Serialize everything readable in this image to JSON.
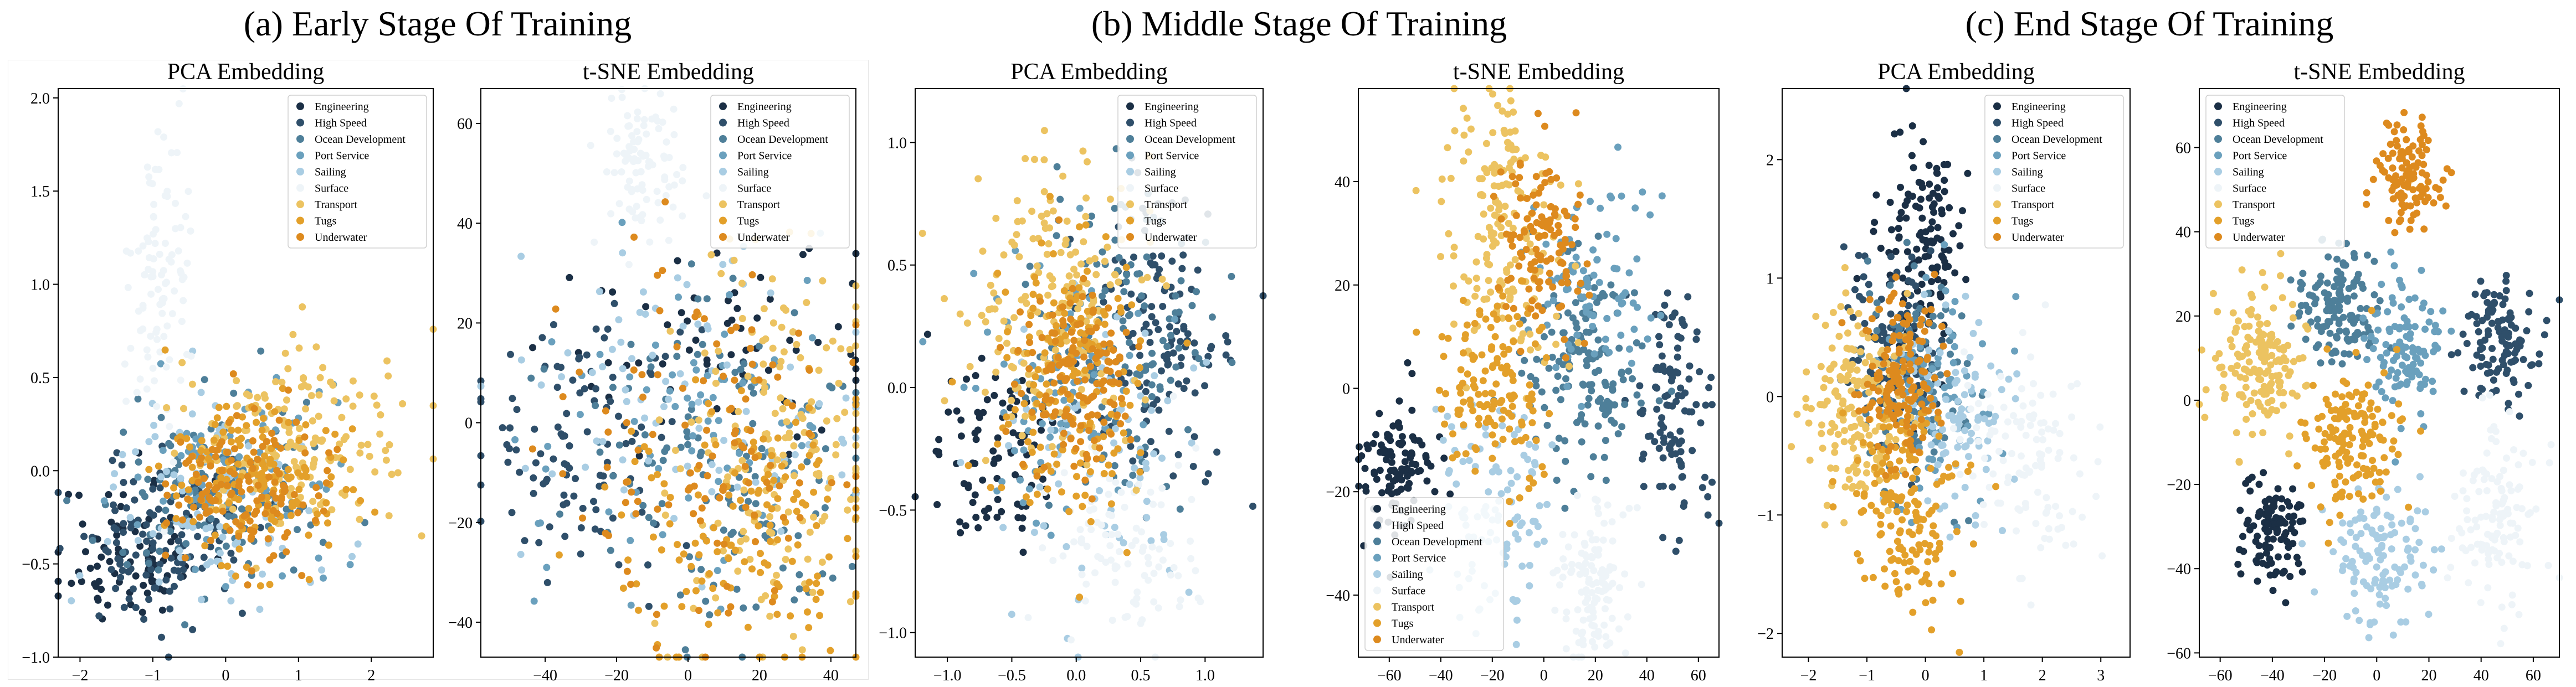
{
  "figure": {
    "stage_titles": [
      "(a) Early Stage Of Training",
      "(b) Middle Stage Of Training",
      "(c) End Stage Of Training"
    ],
    "legend_entries": [
      "Engineering",
      "High Speed",
      "Ocean Development",
      "Port Service",
      "Sailing",
      "Surface",
      "Transport",
      "Tugs",
      "Underwater"
    ],
    "colors": {
      "Engineering": "#1b2f45",
      "High Speed": "#2f4f6a",
      "Ocean Development": "#4e7f99",
      "Port Service": "#6aa0bd",
      "Sailing": "#a9cde3",
      "Surface": "#eef4f8",
      "Transport": "#ecc361",
      "Tugs": "#e3a02a",
      "Underwater": "#dd8a1e"
    }
  },
  "chart_data": [
    {
      "type": "scatter",
      "stage": "(a) Early Stage Of Training",
      "title": "PCA Embedding",
      "xlim": [
        -2.3,
        2.85
      ],
      "ylim": [
        -1.0,
        2.05
      ],
      "xticks": [
        -2,
        -1,
        0,
        1,
        2
      ],
      "yticks": [
        -1.0,
        -0.5,
        0.0,
        0.5,
        1.0,
        1.5,
        2.0
      ],
      "ytick_labels": [
        "−1.0",
        "−0.5",
        "0.0",
        "0.5",
        "1.0",
        "1.5",
        "2.0"
      ],
      "legend_position": "top-right",
      "clusters": [
        {
          "label": "Engineering",
          "cx": -1.3,
          "cy": -0.45,
          "sx": 0.5,
          "sy": 0.2,
          "n": 80
        },
        {
          "label": "High Speed",
          "cx": -0.9,
          "cy": -0.35,
          "sx": 0.6,
          "sy": 0.22,
          "n": 120
        },
        {
          "label": "Ocean Development",
          "cx": -0.2,
          "cy": -0.15,
          "sx": 0.7,
          "sy": 0.25,
          "n": 130
        },
        {
          "label": "Port Service",
          "cx": 0.2,
          "cy": -0.05,
          "sx": 0.7,
          "sy": 0.25,
          "n": 80
        },
        {
          "label": "Sailing",
          "cx": -0.3,
          "cy": -0.2,
          "sx": 0.7,
          "sy": 0.28,
          "n": 90
        },
        {
          "label": "Surface",
          "cx": -0.9,
          "cy": 0.95,
          "sx": 0.22,
          "sy": 0.45,
          "n": 100
        },
        {
          "label": "Transport",
          "cx": 0.9,
          "cy": 0.15,
          "sx": 0.8,
          "sy": 0.25,
          "n": 170
        },
        {
          "label": "Tugs",
          "cx": 0.4,
          "cy": -0.05,
          "sx": 0.6,
          "sy": 0.22,
          "n": 170
        },
        {
          "label": "Underwater",
          "cx": 0.3,
          "cy": -0.1,
          "sx": 0.55,
          "sy": 0.2,
          "n": 130
        }
      ]
    },
    {
      "type": "scatter",
      "stage": "(a) Early Stage Of Training",
      "title": "t-SNE Embedding",
      "xlim": [
        -58,
        47
      ],
      "ylim": [
        -47,
        67
      ],
      "xticks": [
        -40,
        -20,
        0,
        20,
        40
      ],
      "yticks": [
        -40,
        -20,
        0,
        20,
        40,
        60
      ],
      "xtick_labels": [
        "−40",
        "−20",
        "0",
        "20",
        "40"
      ],
      "ytick_labels": [
        "−40",
        "−20",
        "0",
        "20",
        "40",
        "60"
      ],
      "legend_position": "top-right",
      "clusters": [
        {
          "label": "Engineering",
          "cx": 10,
          "cy": 15,
          "sx": 25,
          "sy": 10,
          "n": 60
        },
        {
          "label": "High Speed",
          "cx": -30,
          "cy": -5,
          "sx": 18,
          "sy": 12,
          "n": 110
        },
        {
          "label": "Ocean Development",
          "cx": 10,
          "cy": -10,
          "sx": 22,
          "sy": 18,
          "n": 130
        },
        {
          "label": "Port Service",
          "cx": 0,
          "cy": -5,
          "sx": 22,
          "sy": 18,
          "n": 80
        },
        {
          "label": "Sailing",
          "cx": 0,
          "cy": 5,
          "sx": 25,
          "sy": 15,
          "n": 90
        },
        {
          "label": "Surface",
          "cx": -12,
          "cy": 52,
          "sx": 6,
          "sy": 8,
          "n": 90
        },
        {
          "label": "Transport",
          "cx": 25,
          "cy": -5,
          "sx": 15,
          "sy": 20,
          "n": 170
        },
        {
          "label": "Tugs",
          "cx": 15,
          "cy": -20,
          "sx": 18,
          "sy": 15,
          "n": 150
        },
        {
          "label": "Underwater",
          "cx": 5,
          "cy": -5,
          "sx": 22,
          "sy": 18,
          "n": 110
        }
      ]
    },
    {
      "type": "scatter",
      "stage": "(b) Middle Stage Of Training",
      "title": "PCA Embedding",
      "xlim": [
        -1.25,
        1.45
      ],
      "ylim": [
        -1.1,
        1.22
      ],
      "xticks": [
        -1.0,
        -0.5,
        0.0,
        0.5,
        1.0
      ],
      "yticks": [
        -1.0,
        -0.5,
        0.0,
        0.5,
        1.0
      ],
      "xtick_labels": [
        "−1.0",
        "−0.5",
        "0.0",
        "0.5",
        "1.0"
      ],
      "ytick_labels": [
        "−1.0",
        "−0.5",
        "0.0",
        "0.5",
        "1.0"
      ],
      "legend_position": "top-right",
      "clusters": [
        {
          "label": "Engineering",
          "cx": -0.6,
          "cy": -0.3,
          "sx": 0.25,
          "sy": 0.18,
          "n": 90
        },
        {
          "label": "High Speed",
          "cx": 0.6,
          "cy": 0.15,
          "sx": 0.3,
          "sy": 0.3,
          "n": 140
        },
        {
          "label": "Ocean Development",
          "cx": 0.3,
          "cy": 0.2,
          "sx": 0.35,
          "sy": 0.3,
          "n": 140
        },
        {
          "label": "Port Service",
          "cx": -0.1,
          "cy": -0.05,
          "sx": 0.3,
          "sy": 0.28,
          "n": 80
        },
        {
          "label": "Sailing",
          "cx": 0.1,
          "cy": -0.2,
          "sx": 0.35,
          "sy": 0.3,
          "n": 90
        },
        {
          "label": "Surface",
          "cx": 0.4,
          "cy": -0.65,
          "sx": 0.3,
          "sy": 0.18,
          "n": 100
        },
        {
          "label": "Transport",
          "cx": -0.2,
          "cy": 0.35,
          "sx": 0.35,
          "sy": 0.32,
          "n": 180
        },
        {
          "label": "Tugs",
          "cx": -0.05,
          "cy": 0.0,
          "sx": 0.28,
          "sy": 0.28,
          "n": 170
        },
        {
          "label": "Underwater",
          "cx": 0.0,
          "cy": 0.05,
          "sx": 0.22,
          "sy": 0.22,
          "n": 140
        }
      ]
    },
    {
      "type": "scatter",
      "stage": "(b) Middle Stage Of Training",
      "title": "t-SNE Embedding",
      "xlim": [
        -72,
        68
      ],
      "ylim": [
        -52,
        58
      ],
      "xticks": [
        -60,
        -40,
        -20,
        0,
        20,
        40,
        60
      ],
      "yticks": [
        -40,
        -20,
        0,
        20,
        40
      ],
      "xtick_labels": [
        "−60",
        "−40",
        "−20",
        "0",
        "20",
        "40",
        "60"
      ],
      "ytick_labels": [
        "−40",
        "−20",
        "0",
        "20",
        "40"
      ],
      "legend_position": "bottom-left",
      "clusters": [
        {
          "label": "Engineering",
          "cx": -57,
          "cy": -15,
          "sx": 8,
          "sy": 7,
          "n": 110
        },
        {
          "label": "High Speed",
          "cx": 50,
          "cy": -5,
          "sx": 7,
          "sy": 12,
          "n": 110
        },
        {
          "label": "Ocean Development",
          "cx": 15,
          "cy": 5,
          "sx": 12,
          "sy": 10,
          "n": 150
        },
        {
          "label": "Port Service",
          "cx": 20,
          "cy": 20,
          "sx": 12,
          "sy": 10,
          "n": 90
        },
        {
          "label": "Sailing",
          "cx": -20,
          "cy": -25,
          "sx": 12,
          "sy": 10,
          "n": 110
        },
        {
          "label": "Surface",
          "cx": 20,
          "cy": -38,
          "sx": 8,
          "sy": 8,
          "n": 120
        },
        {
          "label": "Transport",
          "cx": -15,
          "cy": 30,
          "sx": 12,
          "sy": 14,
          "n": 170
        },
        {
          "label": "Tugs",
          "cx": -20,
          "cy": 0,
          "sx": 10,
          "sy": 10,
          "n": 140
        },
        {
          "label": "Underwater",
          "cx": 0,
          "cy": 28,
          "sx": 8,
          "sy": 8,
          "n": 120
        }
      ]
    },
    {
      "type": "scatter",
      "stage": "(c) End Stage Of Training",
      "title": "PCA Embedding",
      "xlim": [
        -2.45,
        3.5
      ],
      "ylim": [
        -2.2,
        2.6
      ],
      "xticks": [
        -2,
        -1,
        0,
        1,
        2,
        3
      ],
      "yticks": [
        -2,
        -1,
        0,
        1,
        2
      ],
      "xtick_labels": [
        "−2",
        "−1",
        "0",
        "1",
        "2",
        "3"
      ],
      "ytick_labels": [
        "−2",
        "−1",
        "0",
        "1",
        "2"
      ],
      "legend_position": "top-right",
      "clusters": [
        {
          "label": "Engineering",
          "cx": 0.0,
          "cy": 1.3,
          "sx": 0.35,
          "sy": 0.5,
          "n": 130
        },
        {
          "label": "High Speed",
          "cx": -0.5,
          "cy": 0.4,
          "sx": 0.4,
          "sy": 0.4,
          "n": 110
        },
        {
          "label": "Ocean Development",
          "cx": -0.3,
          "cy": 0.1,
          "sx": 0.45,
          "sy": 0.45,
          "n": 110
        },
        {
          "label": "Port Service",
          "cx": 0.2,
          "cy": 0.0,
          "sx": 0.45,
          "sy": 0.45,
          "n": 80
        },
        {
          "label": "Sailing",
          "cx": 0.5,
          "cy": -0.2,
          "sx": 0.5,
          "sy": 0.45,
          "n": 100
        },
        {
          "label": "Surface",
          "cx": 1.8,
          "cy": -0.5,
          "sx": 0.6,
          "sy": 0.5,
          "n": 110
        },
        {
          "label": "Transport",
          "cx": -1.2,
          "cy": 0.0,
          "sx": 0.45,
          "sy": 0.45,
          "n": 170
        },
        {
          "label": "Tugs",
          "cx": -0.3,
          "cy": -0.9,
          "sx": 0.45,
          "sy": 0.45,
          "n": 170
        },
        {
          "label": "Underwater",
          "cx": -0.4,
          "cy": 0.2,
          "sx": 0.35,
          "sy": 0.35,
          "n": 150
        }
      ]
    },
    {
      "type": "scatter",
      "stage": "(c) End Stage Of Training",
      "title": "t-SNE Embedding",
      "xlim": [
        -68,
        70
      ],
      "ylim": [
        -61,
        74
      ],
      "xticks": [
        -60,
        -40,
        -20,
        0,
        20,
        40,
        60
      ],
      "yticks": [
        -60,
        -40,
        -20,
        0,
        20,
        40,
        60
      ],
      "xtick_labels": [
        "−60",
        "−40",
        "−20",
        "0",
        "20",
        "40",
        "60"
      ],
      "ytick_labels": [
        "−60",
        "−40",
        "−20",
        "0",
        "20",
        "40",
        "60"
      ],
      "legend_position": "top-left",
      "clusters": [
        {
          "label": "Engineering",
          "cx": -40,
          "cy": -30,
          "sx": 6,
          "sy": 7,
          "n": 110
        },
        {
          "label": "High Speed",
          "cx": 47,
          "cy": 15,
          "sx": 7,
          "sy": 8,
          "n": 110
        },
        {
          "label": "Ocean Development",
          "cx": -15,
          "cy": 22,
          "sx": 8,
          "sy": 7,
          "n": 140
        },
        {
          "label": "Port Service",
          "cx": 10,
          "cy": 12,
          "sx": 7,
          "sy": 8,
          "n": 110
        },
        {
          "label": "Sailing",
          "cx": 0,
          "cy": -38,
          "sx": 10,
          "sy": 8,
          "n": 120
        },
        {
          "label": "Surface",
          "cx": 45,
          "cy": -28,
          "sx": 8,
          "sy": 10,
          "n": 120
        },
        {
          "label": "Transport",
          "cx": -45,
          "cy": 10,
          "sx": 8,
          "sy": 10,
          "n": 160
        },
        {
          "label": "Tugs",
          "cx": -10,
          "cy": -8,
          "sx": 9,
          "sy": 9,
          "n": 150
        },
        {
          "label": "Underwater",
          "cx": 12,
          "cy": 53,
          "sx": 6,
          "sy": 7,
          "n": 110
        }
      ]
    }
  ]
}
